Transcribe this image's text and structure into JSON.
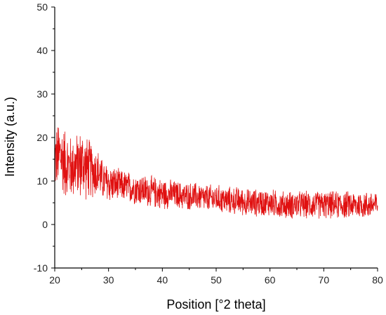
{
  "chart_data": {
    "type": "line",
    "title": "",
    "xlabel": "Position [°2 theta]",
    "ylabel": "Intensity (a.u.)",
    "xlim": [
      20,
      80
    ],
    "ylim": [
      -10,
      50
    ],
    "x_ticks": [
      20,
      30,
      40,
      50,
      60,
      70,
      80
    ],
    "y_ticks": [
      -10,
      0,
      10,
      20,
      30,
      40,
      50
    ],
    "grid": false,
    "legend": "none",
    "series": [
      {
        "color": "#e01010",
        "x": [
          20,
          21,
          22,
          23,
          24,
          25,
          26,
          27,
          28,
          29,
          30,
          32,
          34,
          36,
          38,
          40,
          42,
          44,
          46,
          48,
          50,
          52,
          54,
          56,
          58,
          60,
          62,
          64,
          66,
          68,
          70,
          72,
          74,
          76,
          78,
          80
        ],
        "y": [
          15,
          16,
          14,
          13,
          13.5,
          14,
          13,
          12.5,
          12,
          10,
          9.5,
          9,
          8.5,
          8,
          7.5,
          7,
          7,
          6.5,
          6.5,
          6,
          6,
          5.5,
          5.5,
          5,
          5,
          5,
          4.5,
          4.5,
          4.5,
          4.5,
          4.5,
          4.5,
          4.5,
          4.5,
          4.5,
          4.5
        ],
        "noise_amplitude": [
          8,
          9,
          9,
          8,
          8,
          9,
          8,
          7,
          6,
          5,
          5,
          4,
          4,
          4,
          4,
          4,
          3.5,
          3.5,
          3.5,
          3.5,
          3.5,
          3.5,
          3.5,
          3.5,
          3.5,
          3.5,
          3.5,
          3.5,
          3.5,
          3.5,
          3.5,
          3.5,
          3.5,
          3.5,
          3.5,
          3.5
        ]
      }
    ]
  }
}
